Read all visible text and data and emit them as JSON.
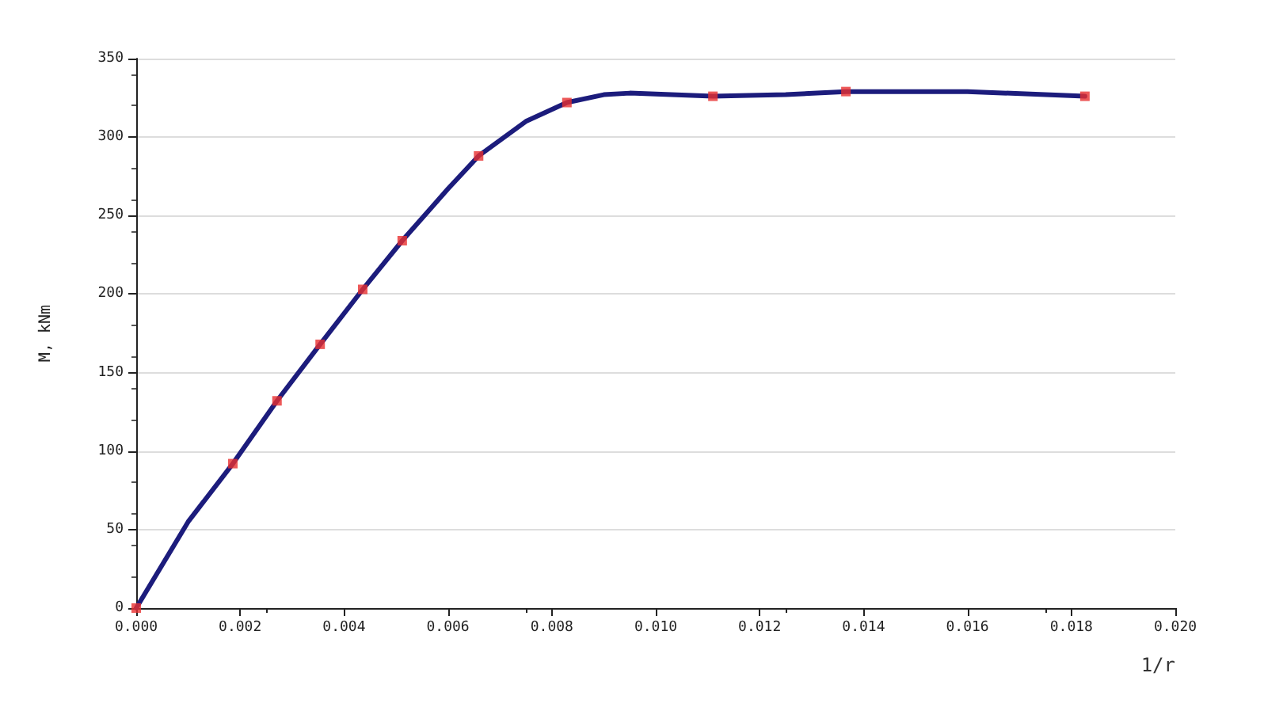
{
  "chart_data": {
    "type": "line",
    "xlabel": "1/r",
    "ylabel": "M, kNm",
    "series": [
      {
        "color": "#1c1c7c",
        "marker": "none",
        "x": [
          0,
          0.001,
          0.00186,
          0.00271,
          0.00354,
          0.00436,
          0.00512,
          0.006,
          0.00659,
          0.0075,
          0.00829,
          0.009,
          0.0095,
          0.0111,
          0.0125,
          0.01366,
          0.016,
          0.01826
        ],
        "values": [
          0,
          55,
          92,
          132,
          168,
          203,
          234,
          267,
          288,
          310,
          322,
          327,
          328,
          326,
          327,
          329,
          329,
          326
        ]
      },
      {
        "type": "scatter",
        "color": "#e83030",
        "marker": "square",
        "x": [
          0,
          0.00186,
          0.00271,
          0.00354,
          0.00436,
          0.00512,
          0.00659,
          0.00829,
          0.0111,
          0.01366,
          0.01826
        ],
        "values": [
          0,
          92,
          132,
          168,
          203,
          234,
          288,
          322,
          326,
          329,
          326
        ]
      }
    ],
    "xlim": [
      0,
      0.02
    ],
    "xticks": [
      {
        "value": 0,
        "label": "0.000"
      },
      {
        "value": 0.002,
        "label": "0.002"
      },
      {
        "value": 0.004,
        "label": "0.004"
      },
      {
        "value": 0.006,
        "label": "0.006"
      },
      {
        "value": 0.008,
        "label": "0.008"
      },
      {
        "value": 0.01,
        "label": "0.010"
      },
      {
        "value": 0.012,
        "label": "0.012"
      },
      {
        "value": 0.014,
        "label": "0.014"
      },
      {
        "value": 0.016,
        "label": "0.016"
      },
      {
        "value": 0.018,
        "label": "0.018"
      },
      {
        "value": 0.02,
        "label": "0.020"
      }
    ],
    "ylim": [
      0,
      350
    ],
    "yticks": [
      0,
      50,
      100,
      150,
      200,
      250,
      300,
      350
    ],
    "grid": "y"
  }
}
